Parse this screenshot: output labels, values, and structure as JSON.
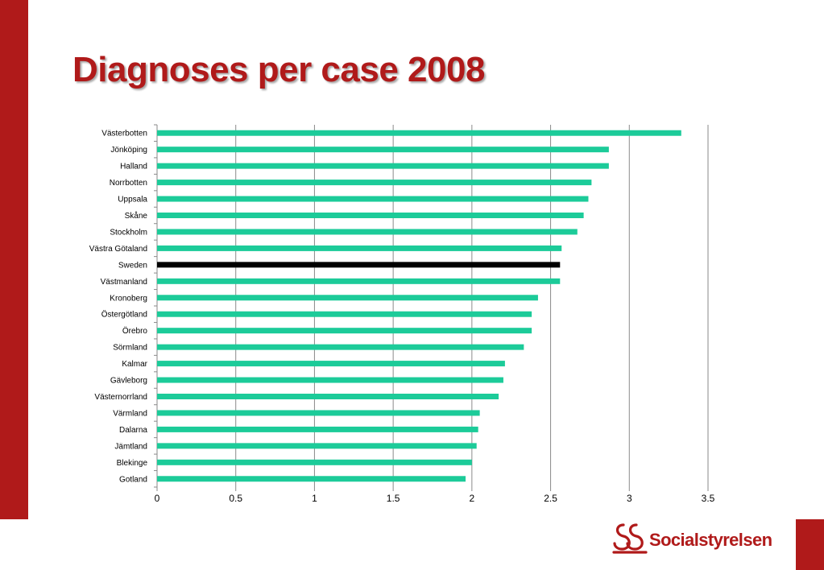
{
  "colors": {
    "accent": "#b01a1a",
    "bar": "#1ccb99",
    "highlight_bar": "#000000"
  },
  "slide": {
    "title": "Diagnoses per case 2008"
  },
  "logo": {
    "name": "Socialstyrelsen",
    "icon": "socialstyrelsen-emblem-icon"
  },
  "chart_data": {
    "type": "bar",
    "orientation": "horizontal",
    "title": "Diagnoses per case 2008",
    "categories": [
      "Västerbotten",
      "Jönköping",
      "Halland",
      "Norrbotten",
      "Uppsala",
      "Skåne",
      "Stockholm",
      "Västra Götaland",
      "Sweden",
      "Västmanland",
      "Kronoberg",
      "Östergötland",
      "Örebro",
      "Sörmland",
      "Kalmar",
      "Gävleborg",
      "Västernorrland",
      "Värmland",
      "Dalarna",
      "Jämtland",
      "Blekinge",
      "Gotland"
    ],
    "values": [
      3.33,
      2.87,
      2.87,
      2.76,
      2.74,
      2.71,
      2.67,
      2.57,
      2.56,
      2.56,
      2.42,
      2.38,
      2.38,
      2.33,
      2.21,
      2.2,
      2.17,
      2.05,
      2.04,
      2.03,
      2.0,
      1.96
    ],
    "highlight": "Sweden",
    "xlim": [
      0,
      3.5
    ],
    "xticks": [
      "0",
      "0.5",
      "1",
      "1.5",
      "2",
      "2.5",
      "3",
      "3.5"
    ],
    "xlabel": "",
    "ylabel": "",
    "grid": "vertical",
    "legend": "none"
  }
}
